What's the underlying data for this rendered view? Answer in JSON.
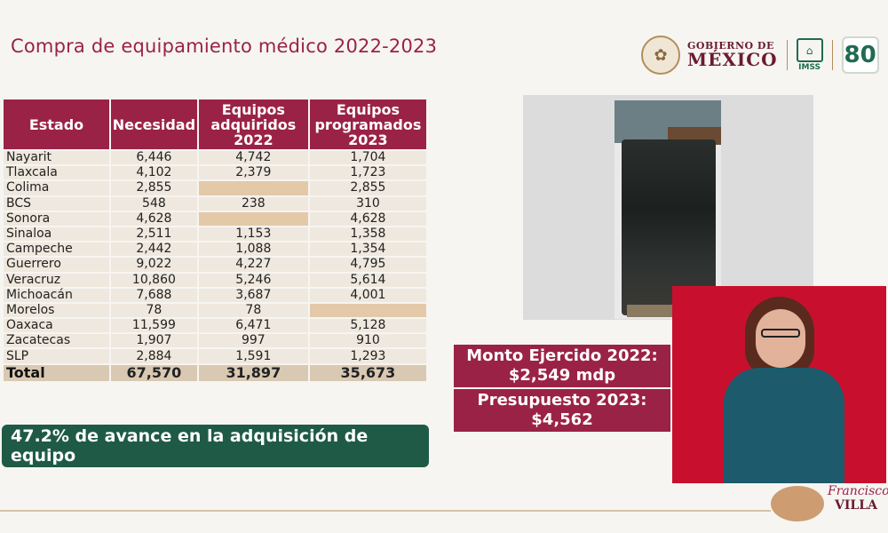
{
  "title": "Compra de equipamiento médico 2022-2023",
  "header": {
    "gobierno_line1": "GOBIERNO DE",
    "gobierno_line2": "MÉXICO",
    "imss": "IMSS",
    "ochenta": "80"
  },
  "table": {
    "columns": [
      "Estado",
      "Necesidad",
      "Equipos adquiridos 2022",
      "Equipos programados 2023"
    ],
    "rows": [
      [
        "Nayarit",
        "6,446",
        "4,742",
        "1,704"
      ],
      [
        "Tlaxcala",
        "4,102",
        "2,379",
        "1,723"
      ],
      [
        "Colima",
        "2,855",
        "",
        "2,855"
      ],
      [
        "BCS",
        "548",
        "238",
        "310"
      ],
      [
        "Sonora",
        "4,628",
        "",
        "4,628"
      ],
      [
        "Sinaloa",
        "2,511",
        "1,153",
        "1,358"
      ],
      [
        "Campeche",
        "2,442",
        "1,088",
        "1,354"
      ],
      [
        "Guerrero",
        "9,022",
        "4,227",
        "4,795"
      ],
      [
        "Veracruz",
        "10,860",
        "5,246",
        "5,614"
      ],
      [
        "Michoacán",
        "7,688",
        "3,687",
        "4,001"
      ],
      [
        "Morelos",
        "78",
        "78",
        ""
      ],
      [
        "Oaxaca",
        "11,599",
        "6,471",
        "5,128"
      ],
      [
        "Zacatecas",
        "1,907",
        "997",
        "910"
      ],
      [
        "SLP",
        "2,884",
        "1,591",
        "1,293"
      ]
    ],
    "total": [
      "Total",
      "67,570",
      "31,897",
      "35,673"
    ]
  },
  "progress_text": "47.2% de avance en la adquisición de equipo",
  "money": {
    "m1_line1": "Monto Ejercido 2022:",
    "m1_line2": "$2,549 mdp",
    "m2_line1": "Presupuesto 2023:",
    "m2_line2": "$4,562"
  },
  "footer_logo": {
    "line1": "Francisco",
    "line2": "VILLA"
  },
  "colors": {
    "guinda": "#9b2247",
    "green": "#1f5a46",
    "interpreter_bg": "#c8102e"
  }
}
